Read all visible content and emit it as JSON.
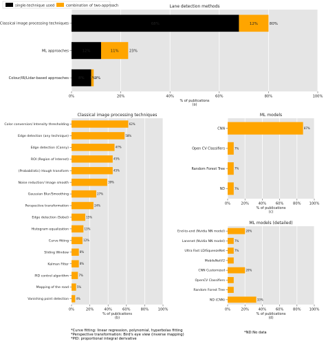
{
  "chart_data": [
    {
      "id": "a",
      "type": "bar",
      "orientation": "horizontal",
      "stacked": true,
      "title": "Lane detection methods",
      "xlabel": "% of publications",
      "sublabel": "(a)",
      "xlim": [
        0,
        100
      ],
      "xticks": [
        0,
        20,
        40,
        60,
        80,
        100
      ],
      "grid": true,
      "legend_placement": "top-left",
      "categories": [
        "Classical image processing techniques",
        "ML approaches",
        "Colour/IR/Lidar-based approaches"
      ],
      "series": [
        {
          "name": "single-technique used",
          "color": "#000000",
          "values": [
            68,
            12,
            8
          ],
          "labels": [
            "68%",
            "12%",
            "8%"
          ]
        },
        {
          "name": "combination of two-approach",
          "color": "#ffa500",
          "values": [
            12,
            11,
            1
          ],
          "labels": [
            "12%",
            "11%",
            "1%"
          ]
        }
      ],
      "totals": [
        "80%",
        "23%",
        "9%"
      ]
    },
    {
      "id": "b",
      "type": "bar",
      "orientation": "horizontal",
      "title": "Classical image processing techniques",
      "xlabel": "% of publications",
      "sublabel": "(b)",
      "xlim": [
        0,
        100
      ],
      "xticks": [
        0,
        20,
        40,
        60,
        80,
        100
      ],
      "grid": true,
      "categories": [
        "Color conversion/ Intensity thresholding",
        "Edge detection (any technique)",
        "Edge detection (Canny)",
        "ROI (Region of Interest)",
        "(Probabilistic) Hough transform",
        "Noise reduction/ Image smooth",
        "Gaussian Blur/Smoothing",
        "Perspective transformation",
        "Edge detection (Sobel)",
        "Histogram equalization",
        "Curve fitting",
        "Sliding Window",
        "Kalman Filter",
        "PID control algorithm",
        "Mapping of the road",
        "Vanishing point detection"
      ],
      "values": [
        62,
        58,
        47,
        45,
        45,
        39,
        27,
        24,
        15,
        13,
        12,
        8,
        8,
        7,
        5,
        4
      ],
      "labels": [
        "62%",
        "58%",
        "47%",
        "45%",
        "45%",
        "39%",
        "27%",
        "24%",
        "15%",
        "13%",
        "12%",
        "8%",
        "8%",
        "7%",
        "5%",
        "4%"
      ],
      "color": "#ffa500"
    },
    {
      "id": "c",
      "type": "bar",
      "orientation": "horizontal",
      "title": "ML models",
      "xlabel": "% of publications",
      "sublabel": "(c)",
      "xlim": [
        0,
        100
      ],
      "xticks": [
        0,
        20,
        40,
        60,
        80,
        100
      ],
      "grid": true,
      "categories": [
        "CNN",
        "Open CV Classifiers",
        "Random Forest Tree",
        "ND"
      ],
      "values": [
        87,
        7,
        7,
        7
      ],
      "labels": [
        "87%",
        "7%",
        "7%",
        "7%"
      ],
      "color": "#ffa500"
    },
    {
      "id": "d",
      "type": "bar",
      "orientation": "horizontal",
      "title": "ML models (detailed)",
      "xlabel": "% of publications",
      "sublabel": "(d)",
      "xlim": [
        0,
        100
      ],
      "xticks": [
        0,
        20,
        40,
        60,
        80,
        100
      ],
      "grid": true,
      "categories": [
        "End-to-end (Nvidia NN model)",
        "Lanenet (Nvidia NN model)",
        "Ultra Fast LD/SqueezeNet",
        "MobileNetV2",
        "CNN Customized",
        "OpenCV Classifiers",
        "Random Forest Tree",
        "ND (CNN)"
      ],
      "values": [
        20,
        7,
        7,
        7,
        20,
        7,
        7,
        33
      ],
      "labels": [
        "20%",
        "7%",
        "7%",
        "",
        "20%",
        "",
        "",
        "33%"
      ],
      "color": "#ffa500"
    }
  ],
  "footnotes": {
    "left": [
      "*Curve fitting: linear regression, polynomial, hyperbolas fitting",
      "*Perspective transformation: Bird's eye view (inverse mapping)",
      "*PID: proportional integral derivative"
    ],
    "right": "*ND:No data"
  },
  "colors": {
    "background": "#e5e5e5",
    "grid": "#ffffff",
    "single": "#000000",
    "combo": "#ffa500"
  }
}
